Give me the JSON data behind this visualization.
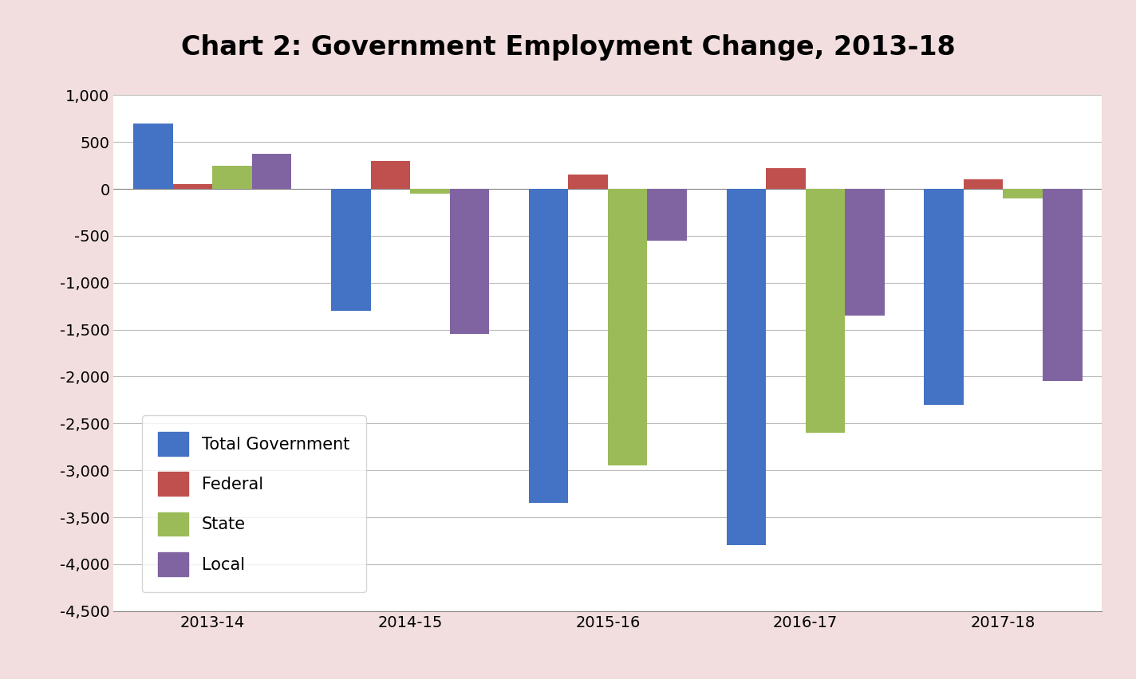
{
  "title": "Chart 2: Government Employment Change, 2013-18",
  "categories": [
    "2013-14",
    "2014-15",
    "2015-16",
    "2016-17",
    "2017-18"
  ],
  "series": {
    "Total Government": [
      700,
      -1300,
      -3350,
      -3800,
      -2300
    ],
    "Federal": [
      50,
      300,
      150,
      225,
      100
    ],
    "State": [
      250,
      -50,
      -2950,
      -2600,
      -100
    ],
    "Local": [
      375,
      -1550,
      -550,
      -1350,
      -2050
    ]
  },
  "colors": {
    "Total Government": "#4472C4",
    "Federal": "#C0504D",
    "State": "#9BBB59",
    "Local": "#8064A2"
  },
  "ylim": [
    -4500,
    1000
  ],
  "yticks": [
    1000,
    500,
    0,
    -500,
    -1000,
    -1500,
    -2000,
    -2500,
    -3000,
    -3500,
    -4000,
    -4500
  ],
  "ytick_labels": [
    "1,000",
    "500",
    "0",
    "-500",
    "-1,000",
    "-1,500",
    "-2,000",
    "-2,500",
    "-3,000",
    "-3,500",
    "-4,000",
    "-4,500"
  ],
  "background_color": "#F2DEDE",
  "plot_background": "#FFFFFF",
  "title_fontsize": 24,
  "tick_fontsize": 14,
  "legend_fontsize": 15,
  "bar_width": 0.2,
  "xlim": [
    -0.5,
    4.5
  ]
}
